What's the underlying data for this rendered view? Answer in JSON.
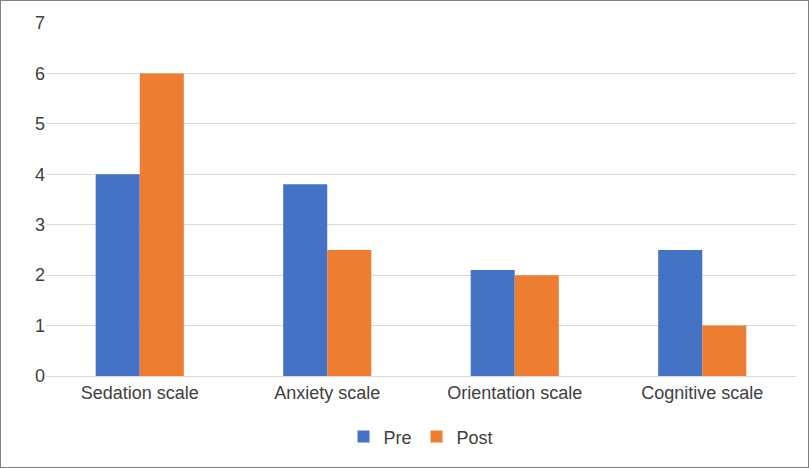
{
  "chart_data": {
    "type": "bar",
    "categories": [
      "Sedation scale",
      "Anxiety scale",
      "Orientation scale",
      "Cognitive scale"
    ],
    "series": [
      {
        "name": "Pre",
        "color": "#4472c4",
        "values": [
          4,
          3.8,
          2.1,
          2.5
        ]
      },
      {
        "name": "Post",
        "color": "#ed7d31",
        "values": [
          6,
          2.5,
          2.0,
          1.0
        ]
      }
    ],
    "ylim": [
      0,
      7
    ],
    "yticks": [
      0,
      1,
      2,
      3,
      4,
      5,
      6,
      7
    ],
    "grid": true,
    "legend": "bottom"
  }
}
